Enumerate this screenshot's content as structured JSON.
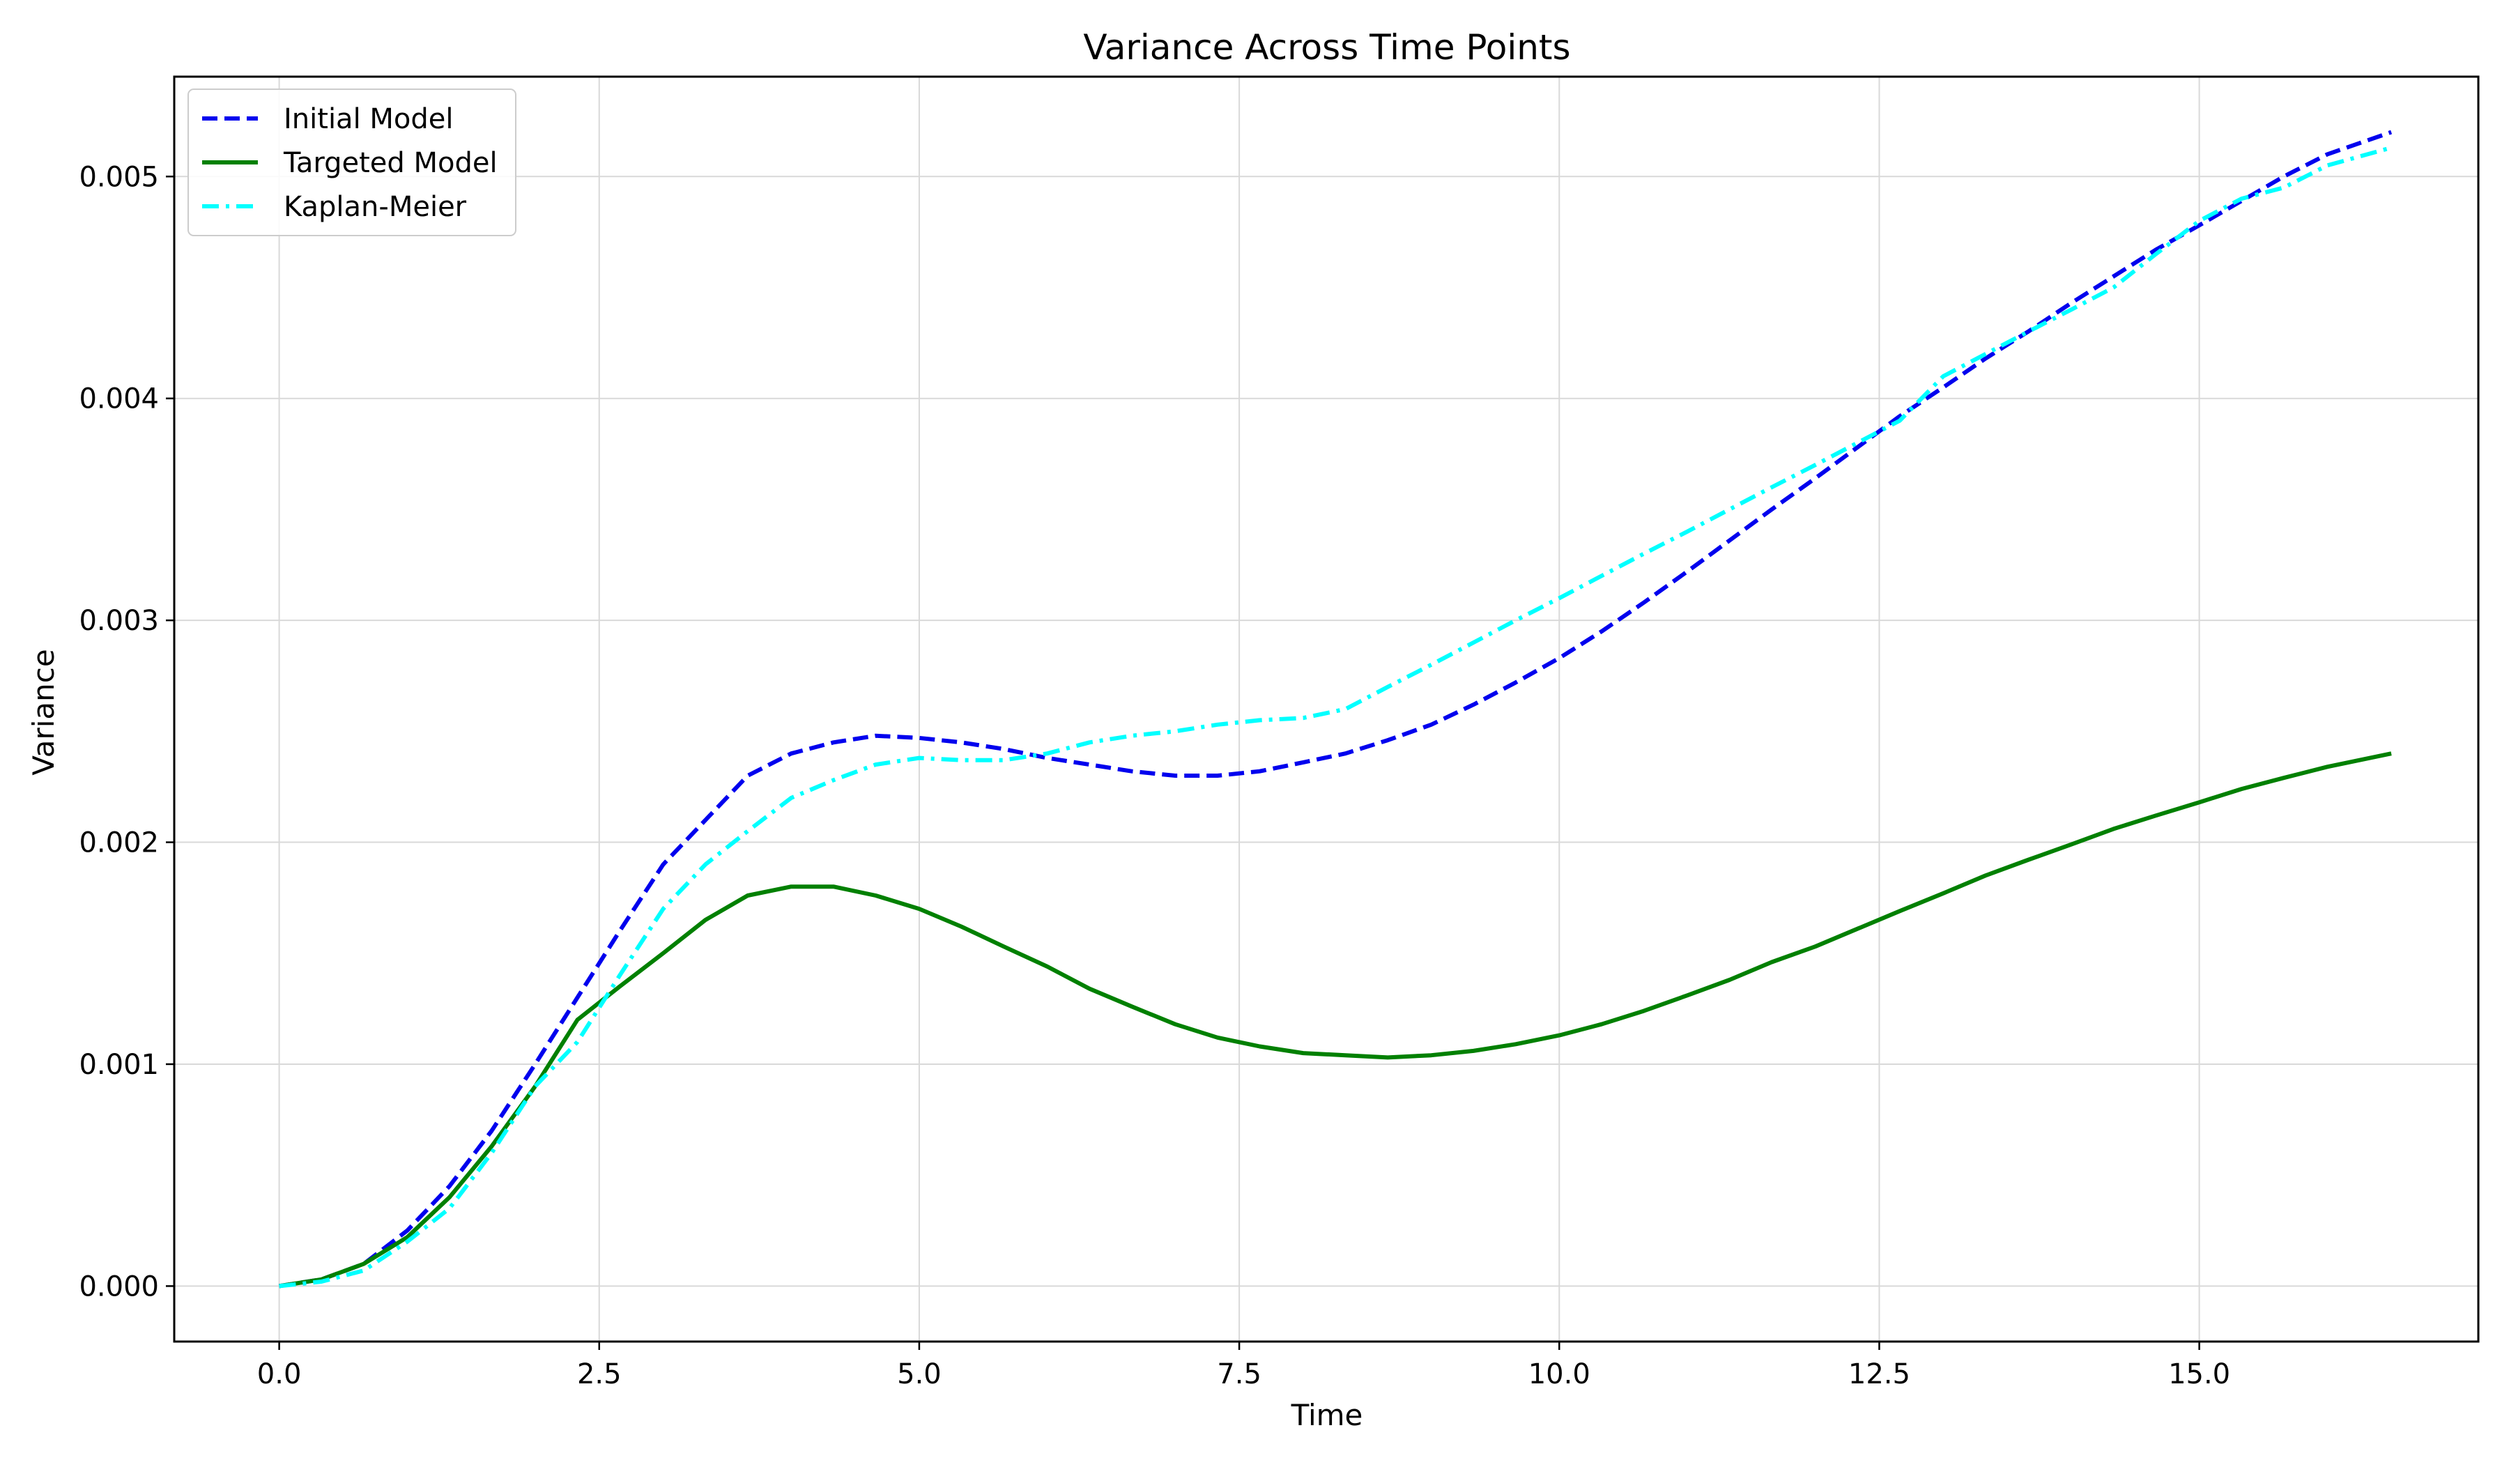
{
  "chart_data": {
    "type": "line",
    "title": "Variance Across Time Points",
    "xlabel": "Time",
    "ylabel": "Variance",
    "xlim": [
      -0.82,
      17.18
    ],
    "ylim": [
      -0.00025,
      0.00545
    ],
    "xticks": [
      0.0,
      2.5,
      5.0,
      7.5,
      10.0,
      12.5,
      15.0
    ],
    "xtick_labels": [
      "0.0",
      "2.5",
      "5.0",
      "7.5",
      "10.0",
      "12.5",
      "15.0"
    ],
    "yticks": [
      0.0,
      0.001,
      0.002,
      0.003,
      0.004,
      0.005
    ],
    "ytick_labels": [
      "0.000",
      "0.001",
      "0.002",
      "0.003",
      "0.004",
      "0.005"
    ],
    "grid": true,
    "legend_position": "top-left",
    "x": [
      0.0,
      0.33,
      0.66,
      1.0,
      1.33,
      1.66,
      2.0,
      2.33,
      2.66,
      3.0,
      3.33,
      3.66,
      4.0,
      4.33,
      4.66,
      5.0,
      5.33,
      5.66,
      6.0,
      6.33,
      6.66,
      7.0,
      7.33,
      7.66,
      8.0,
      8.33,
      8.66,
      9.0,
      9.33,
      9.66,
      10.0,
      10.33,
      10.66,
      11.0,
      11.33,
      11.66,
      12.0,
      12.33,
      12.66,
      13.0,
      13.33,
      13.66,
      14.0,
      14.33,
      14.66,
      15.0,
      15.33,
      15.66,
      16.0,
      16.5
    ],
    "series": [
      {
        "name": "Initial Model",
        "color": "#0000ee",
        "style": "dashed",
        "values": [
          0.0,
          3e-05,
          0.0001,
          0.00025,
          0.00045,
          0.0007,
          0.001,
          0.0013,
          0.0016,
          0.0019,
          0.0021,
          0.0023,
          0.0024,
          0.00245,
          0.00248,
          0.00247,
          0.00245,
          0.00242,
          0.00238,
          0.00235,
          0.00232,
          0.0023,
          0.0023,
          0.00232,
          0.00236,
          0.0024,
          0.00246,
          0.00253,
          0.00262,
          0.00272,
          0.00283,
          0.00295,
          0.00308,
          0.00322,
          0.00336,
          0.0035,
          0.00364,
          0.00378,
          0.00392,
          0.00405,
          0.00418,
          0.0043,
          0.00443,
          0.00455,
          0.00467,
          0.00478,
          0.00489,
          0.005,
          0.0051,
          0.0052
        ]
      },
      {
        "name": "Targeted Model",
        "color": "#008000",
        "style": "solid",
        "values": [
          0.0,
          3e-05,
          0.0001,
          0.00022,
          0.0004,
          0.00063,
          0.0009,
          0.0012,
          0.00135,
          0.0015,
          0.00165,
          0.00176,
          0.0018,
          0.0018,
          0.00176,
          0.0017,
          0.00162,
          0.00153,
          0.00144,
          0.00134,
          0.00126,
          0.00118,
          0.00112,
          0.00108,
          0.00105,
          0.00104,
          0.00103,
          0.00104,
          0.00106,
          0.00109,
          0.00113,
          0.00118,
          0.00124,
          0.00131,
          0.00138,
          0.00146,
          0.00153,
          0.00161,
          0.00169,
          0.00177,
          0.00185,
          0.00192,
          0.00199,
          0.00206,
          0.00212,
          0.00218,
          0.00224,
          0.00229,
          0.00234,
          0.0024
        ]
      },
      {
        "name": "Kaplan-Meier",
        "color": "#00ffff",
        "style": "dashdot",
        "values": [
          0.0,
          2e-05,
          7e-05,
          0.0002,
          0.00035,
          0.0006,
          0.0009,
          0.0011,
          0.0014,
          0.0017,
          0.0019,
          0.00205,
          0.0022,
          0.00228,
          0.00235,
          0.00238,
          0.00237,
          0.00237,
          0.0024,
          0.00245,
          0.00248,
          0.0025,
          0.00253,
          0.00255,
          0.00256,
          0.0026,
          0.0027,
          0.0028,
          0.0029,
          0.003,
          0.0031,
          0.0032,
          0.0033,
          0.0034,
          0.0035,
          0.0036,
          0.0037,
          0.0038,
          0.0039,
          0.0041,
          0.0042,
          0.0043,
          0.0044,
          0.0045,
          0.00465,
          0.0048,
          0.0049,
          0.00495,
          0.00505,
          0.00513
        ]
      }
    ]
  }
}
